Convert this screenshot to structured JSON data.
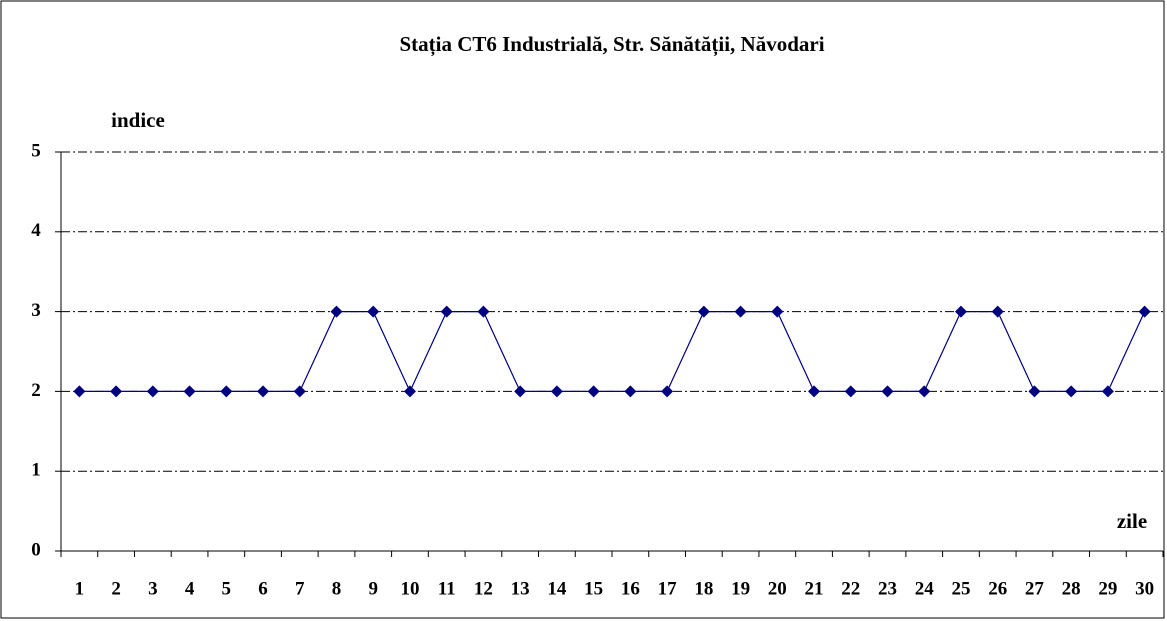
{
  "chart_data": {
    "type": "line",
    "title": "Stația CT6 Industrială, Str. Sănătății, Năvodari",
    "y_label": "indice",
    "x_label": "zile",
    "categories": [
      "1",
      "2",
      "3",
      "4",
      "5",
      "6",
      "7",
      "8",
      "9",
      "10",
      "11",
      "12",
      "13",
      "14",
      "15",
      "16",
      "17",
      "18",
      "19",
      "20",
      "21",
      "22",
      "23",
      "24",
      "25",
      "26",
      "27",
      "28",
      "29",
      "30"
    ],
    "series": [
      {
        "name": "indice",
        "color": "#000080",
        "values": [
          2,
          2,
          2,
          2,
          2,
          2,
          2,
          3,
          3,
          2,
          3,
          3,
          2,
          2,
          2,
          2,
          2,
          3,
          3,
          3,
          2,
          2,
          2,
          2,
          3,
          3,
          2,
          2,
          2,
          3
        ]
      }
    ],
    "ylim": [
      0,
      5
    ],
    "yticks": [
      0,
      1,
      2,
      3,
      4,
      5
    ],
    "grid": true
  }
}
